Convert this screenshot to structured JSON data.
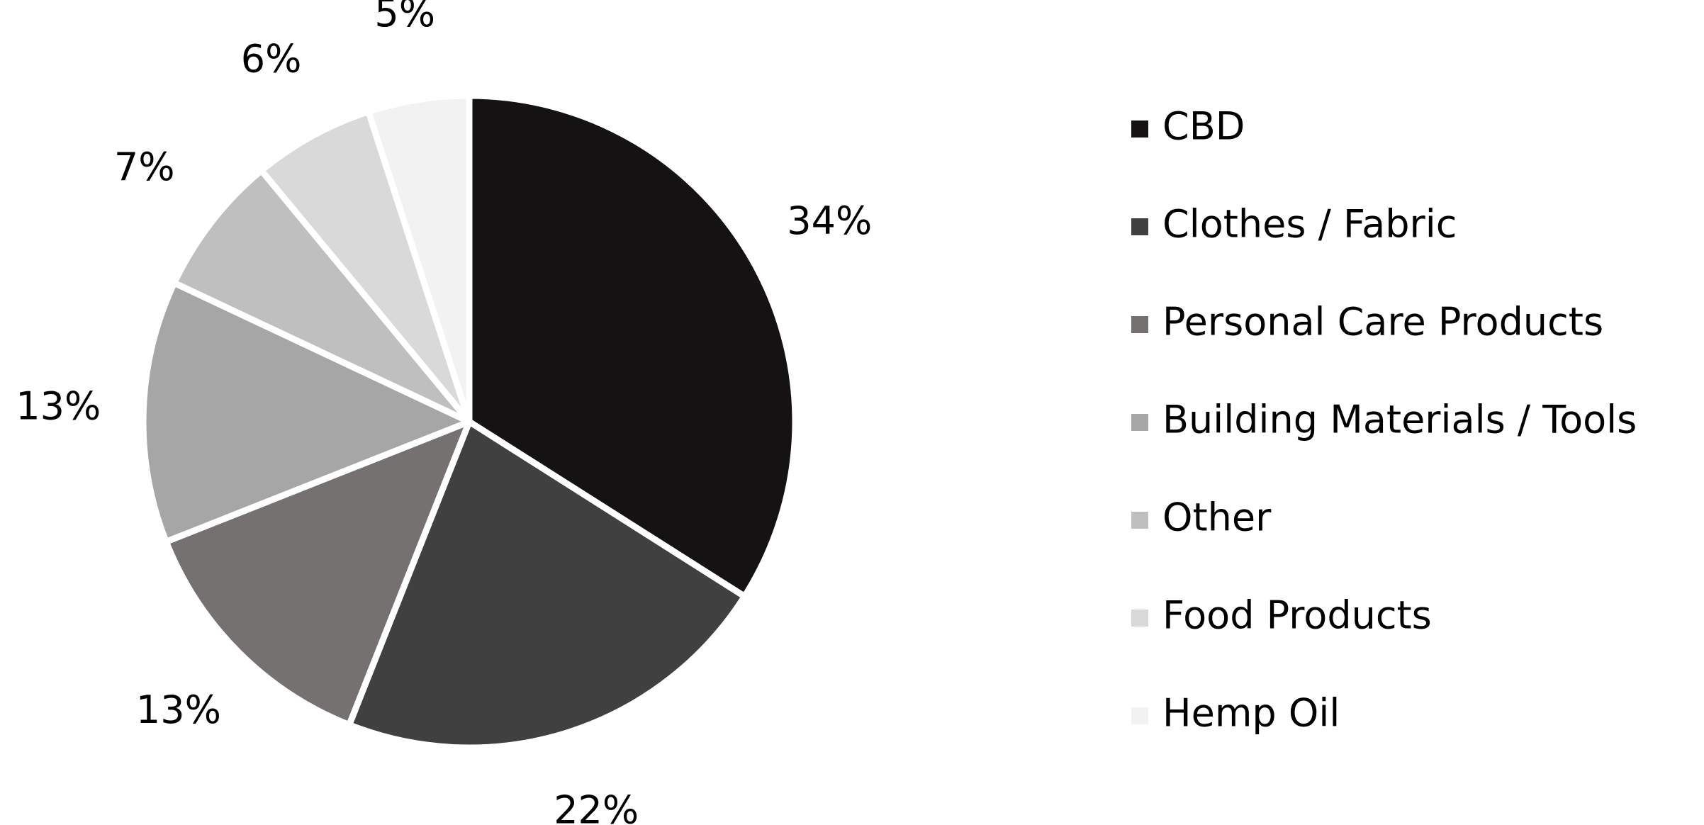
{
  "chart_data": {
    "type": "pie",
    "categories": [
      "CBD",
      "Clothes / Fabric",
      "Personal Care Products",
      "Building Materials / Tools",
      "Other",
      "Food Products",
      "Hemp Oil"
    ],
    "values": [
      34,
      22,
      13,
      13,
      7,
      6,
      5
    ],
    "value_labels": [
      "34%",
      "22%",
      "13%",
      "13%",
      "7%",
      "6%",
      "5%"
    ],
    "colors": [
      "#141212",
      "#404040",
      "#767171",
      "#a6a6a6",
      "#bfbfbf",
      "#d9d9d9",
      "#f2f2f2"
    ],
    "legend": "right"
  }
}
